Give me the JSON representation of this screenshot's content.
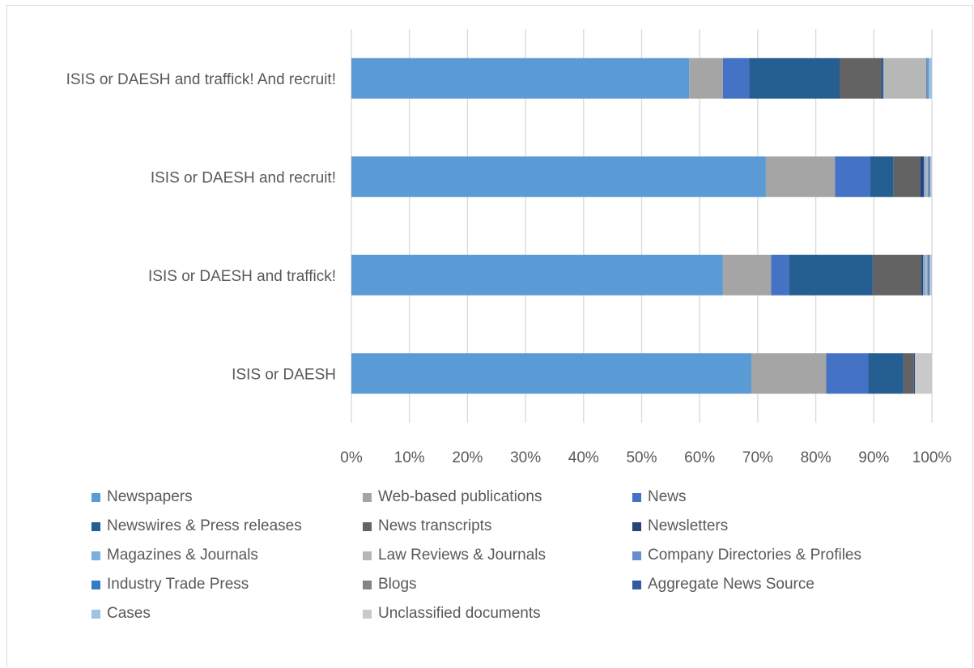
{
  "chart_data": {
    "type": "bar",
    "orientation": "horizontal",
    "stacked": "percent",
    "title": "",
    "xlabel": "",
    "ylabel": "",
    "xlim": [
      0,
      100
    ],
    "x_ticks": [
      "0%",
      "10%",
      "20%",
      "30%",
      "40%",
      "50%",
      "60%",
      "70%",
      "80%",
      "90%",
      "100%"
    ],
    "grid": true,
    "legend_position": "bottom",
    "categories": [
      "ISIS or DAESH and traffick! And recruit!",
      "ISIS or DAESH and recruit!",
      "ISIS or DAESH and traffick!",
      "ISIS or DAESH"
    ],
    "series": [
      {
        "name": "Newspapers",
        "color": "#5b9bd5",
        "values": [
          58.2,
          71.4,
          64.0,
          68.9
        ]
      },
      {
        "name": "Web-based publications",
        "color": "#a5a5a5",
        "values": [
          5.8,
          11.9,
          8.3,
          12.9
        ]
      },
      {
        "name": "News",
        "color": "#4472c4",
        "values": [
          4.5,
          6.1,
          3.1,
          7.2
        ]
      },
      {
        "name": "Newswires & Press releases",
        "color": "#255e91",
        "values": [
          15.6,
          4.0,
          14.4,
          6.1
        ]
      },
      {
        "name": "News transcripts",
        "color": "#636363",
        "values": [
          7.2,
          4.6,
          8.4,
          1.8
        ]
      },
      {
        "name": "Newsletters",
        "color": "#264478",
        "values": [
          0.3,
          0.6,
          0.3,
          0.1
        ]
      },
      {
        "name": "Magazines & Journals",
        "color": "#7cafdd",
        "values": [
          0.2,
          0.4,
          0.4,
          0.0
        ]
      },
      {
        "name": "Law Reviews & Journals",
        "color": "#b7b7b7",
        "values": [
          7.2,
          0.3,
          0.3,
          0.0
        ]
      },
      {
        "name": "Company Directories & Profiles",
        "color": "#698ed0",
        "values": [
          0.1,
          0.1,
          0.1,
          0.0
        ]
      },
      {
        "name": "Industry Trade Press",
        "color": "#327dc2",
        "values": [
          0.1,
          0.1,
          0.1,
          0.0
        ]
      },
      {
        "name": "Blogs",
        "color": "#848484",
        "values": [
          0.1,
          0.1,
          0.1,
          0.0
        ]
      },
      {
        "name": "Aggregate News Source",
        "color": "#335aa1",
        "values": [
          0.1,
          0.1,
          0.1,
          0.1
        ]
      },
      {
        "name": "Cases",
        "color": "#9dc3e6",
        "values": [
          0.6,
          0.1,
          0.2,
          0.0
        ]
      },
      {
        "name": "Unclassified documents",
        "color": "#c9c9c9",
        "values": [
          0.0,
          0.2,
          0.2,
          2.9
        ]
      }
    ]
  }
}
